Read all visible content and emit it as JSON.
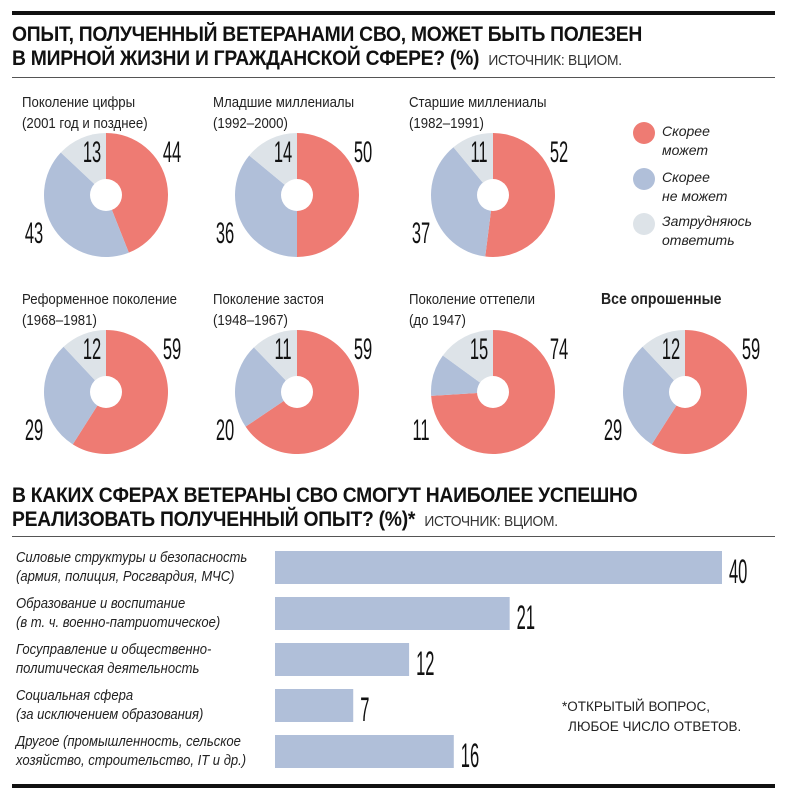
{
  "colors": {
    "may": "#ee7b73",
    "maynot": "#b0bfd9",
    "unsure": "#dde3e8",
    "bar": "#b0bfd9"
  },
  "section1": {
    "title_line1": "ОПЫТ, ПОЛУЧЕННЫЙ ВЕТЕРАНАМИ СВО, МОЖЕТ БЫТЬ ПОЛЕЗЕН",
    "title_line2": "В МИРНОЙ ЖИЗНИ И ГРАЖДАНСКОЙ СФЕРЕ? (%)",
    "source": "ИСТОЧНИК: ВЦИОМ."
  },
  "legend": [
    {
      "line1": "Скорее",
      "line2": "может"
    },
    {
      "line1": "Скорее",
      "line2": "не может"
    },
    {
      "line1": "Затрудняюсь",
      "line2": "ответить"
    }
  ],
  "section2": {
    "title_line1": "В КАКИХ СФЕРАХ ВЕТЕРАНЫ СВО СМОГУТ НАИБОЛЕЕ УСПЕШНО",
    "title_line2": "РЕАЛИЗОВАТЬ ПОЛУЧЕННЫЙ ОПЫТ? (%)*",
    "source": "ИСТОЧНИК: ВЦИОМ.",
    "note_line1": "*ОТКРЫТЫЙ ВОПРОС,",
    "note_line2": "ЛЮБОЕ ЧИСЛО ОТВЕТОВ."
  },
  "chart_data": [
    {
      "type": "pie",
      "series_names": [
        "Скорее может",
        "Скорее не может",
        "Затрудняюсь ответить"
      ],
      "pies": [
        {
          "line1": "Поколение цифры",
          "line2": "(2001 год и позднее)",
          "values": [
            44,
            43,
            13
          ]
        },
        {
          "line1": "Младшие миллениалы",
          "line2": "(1992–2000)",
          "values": [
            50,
            36,
            14
          ]
        },
        {
          "line1": "Старшие миллениалы",
          "line2": "(1982–1991)",
          "values": [
            52,
            37,
            11
          ]
        },
        {
          "line1": "Реформенное поколение",
          "line2": "(1968–1981)",
          "values": [
            59,
            29,
            12
          ]
        },
        {
          "line1": "Поколение застоя",
          "line2": "(1948–1967)",
          "values": [
            59,
            20,
            11
          ]
        },
        {
          "line1": "Поколение оттепели",
          "line2": "(до 1947)",
          "values": [
            74,
            11,
            15
          ]
        },
        {
          "line1": "Все опрошенные",
          "line2": "",
          "values": [
            59,
            29,
            12
          ]
        }
      ]
    },
    {
      "type": "bar",
      "orientation": "horizontal",
      "categories": [
        {
          "line1": "Силовые структуры и безопасность",
          "line2": "(армия, полиция, Росгвардия, МЧС)"
        },
        {
          "line1": "Образование и воспитание",
          "line2": "(в т. ч. военно-патриотическое)"
        },
        {
          "line1": "Госуправление и общественно-",
          "line2": "политическая деятельность"
        },
        {
          "line1": "Социальная сфера",
          "line2": "(за исключением образования)"
        },
        {
          "line1": "Другое (промышленность, сельское",
          "line2": "хозяйство, строительство, IT и др.)"
        }
      ],
      "values": [
        40,
        21,
        12,
        7,
        16
      ]
    }
  ]
}
